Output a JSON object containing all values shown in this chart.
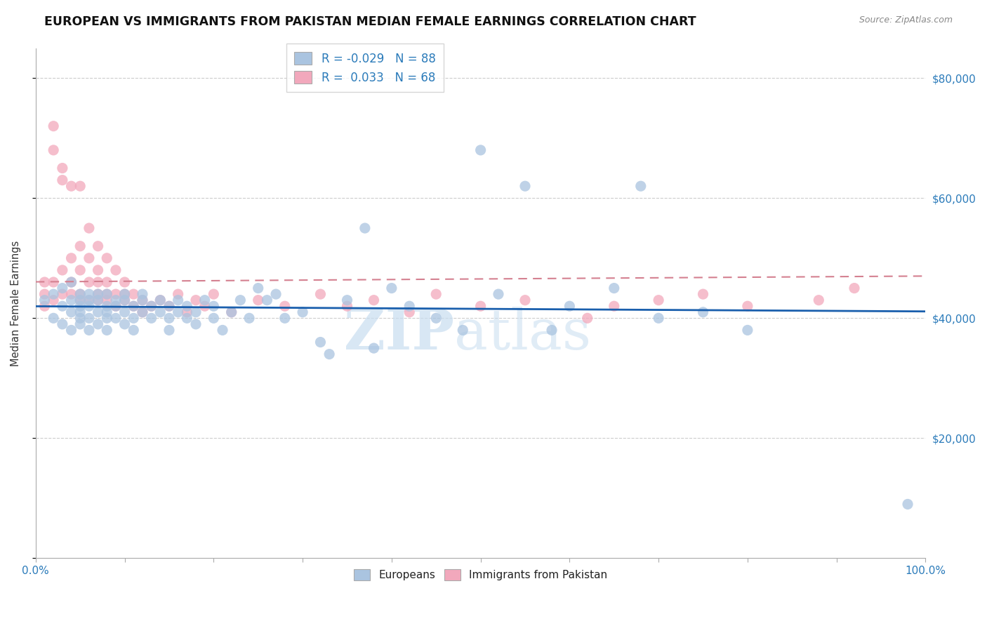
{
  "title": "EUROPEAN VS IMMIGRANTS FROM PAKISTAN MEDIAN FEMALE EARNINGS CORRELATION CHART",
  "source": "Source: ZipAtlas.com",
  "ylabel": "Median Female Earnings",
  "xlim": [
    0,
    100
  ],
  "ylim": [
    0,
    85000
  ],
  "yticks": [
    0,
    20000,
    40000,
    60000,
    80000
  ],
  "ytick_labels": [
    "",
    "$20,000",
    "$40,000",
    "$60,000",
    "$80,000"
  ],
  "legend_R1": "-0.029",
  "legend_N1": "88",
  "legend_R2": "0.033",
  "legend_N2": "68",
  "color_european": "#aac4e0",
  "color_pakistan": "#f2a8bc",
  "color_trend_european": "#1a5fad",
  "color_trend_pakistan": "#d48090",
  "watermark_part1": "ZIP",
  "watermark_part2": "atlas",
  "europeans_x": [
    1,
    2,
    2,
    3,
    3,
    3,
    4,
    4,
    4,
    4,
    5,
    5,
    5,
    5,
    5,
    5,
    6,
    6,
    6,
    6,
    6,
    7,
    7,
    7,
    7,
    8,
    8,
    8,
    8,
    8,
    9,
    9,
    9,
    10,
    10,
    10,
    10,
    11,
    11,
    11,
    12,
    12,
    12,
    13,
    13,
    14,
    14,
    15,
    15,
    15,
    16,
    16,
    17,
    17,
    18,
    18,
    19,
    20,
    20,
    21,
    22,
    23,
    24,
    25,
    26,
    27,
    28,
    30,
    32,
    33,
    35,
    37,
    38,
    40,
    42,
    45,
    48,
    50,
    52,
    55,
    58,
    60,
    65,
    68,
    70,
    75,
    80,
    98
  ],
  "europeans_y": [
    43000,
    40000,
    44000,
    42000,
    39000,
    45000,
    41000,
    43000,
    38000,
    46000,
    40000,
    42000,
    44000,
    39000,
    41000,
    43000,
    38000,
    42000,
    44000,
    40000,
    43000,
    41000,
    39000,
    43000,
    44000,
    38000,
    42000,
    40000,
    44000,
    41000,
    43000,
    40000,
    42000,
    39000,
    41000,
    43000,
    44000,
    40000,
    42000,
    38000,
    41000,
    43000,
    44000,
    40000,
    42000,
    41000,
    43000,
    38000,
    40000,
    42000,
    41000,
    43000,
    40000,
    42000,
    39000,
    41000,
    43000,
    40000,
    42000,
    38000,
    41000,
    43000,
    40000,
    45000,
    43000,
    44000,
    40000,
    41000,
    36000,
    34000,
    43000,
    55000,
    35000,
    45000,
    42000,
    40000,
    38000,
    68000,
    44000,
    62000,
    38000,
    42000,
    45000,
    62000,
    40000,
    41000,
    38000,
    9000
  ],
  "pakistan_x": [
    1,
    1,
    1,
    2,
    2,
    2,
    2,
    3,
    3,
    3,
    3,
    4,
    4,
    4,
    4,
    5,
    5,
    5,
    5,
    5,
    6,
    6,
    6,
    6,
    7,
    7,
    7,
    7,
    7,
    8,
    8,
    8,
    8,
    9,
    9,
    9,
    10,
    10,
    10,
    11,
    11,
    12,
    12,
    13,
    14,
    15,
    16,
    17,
    18,
    19,
    20,
    22,
    25,
    28,
    32,
    35,
    38,
    42,
    45,
    50,
    55,
    62,
    65,
    70,
    75,
    80,
    88,
    92
  ],
  "pakistan_y": [
    44000,
    46000,
    42000,
    72000,
    68000,
    46000,
    43000,
    65000,
    63000,
    44000,
    48000,
    62000,
    50000,
    46000,
    44000,
    52000,
    48000,
    44000,
    62000,
    43000,
    55000,
    50000,
    46000,
    43000,
    52000,
    48000,
    44000,
    46000,
    43000,
    50000,
    46000,
    43000,
    44000,
    48000,
    44000,
    42000,
    46000,
    43000,
    44000,
    44000,
    42000,
    43000,
    41000,
    42000,
    43000,
    42000,
    44000,
    41000,
    43000,
    42000,
    44000,
    41000,
    43000,
    42000,
    44000,
    42000,
    43000,
    41000,
    44000,
    42000,
    43000,
    40000,
    42000,
    43000,
    44000,
    42000,
    43000,
    45000
  ]
}
